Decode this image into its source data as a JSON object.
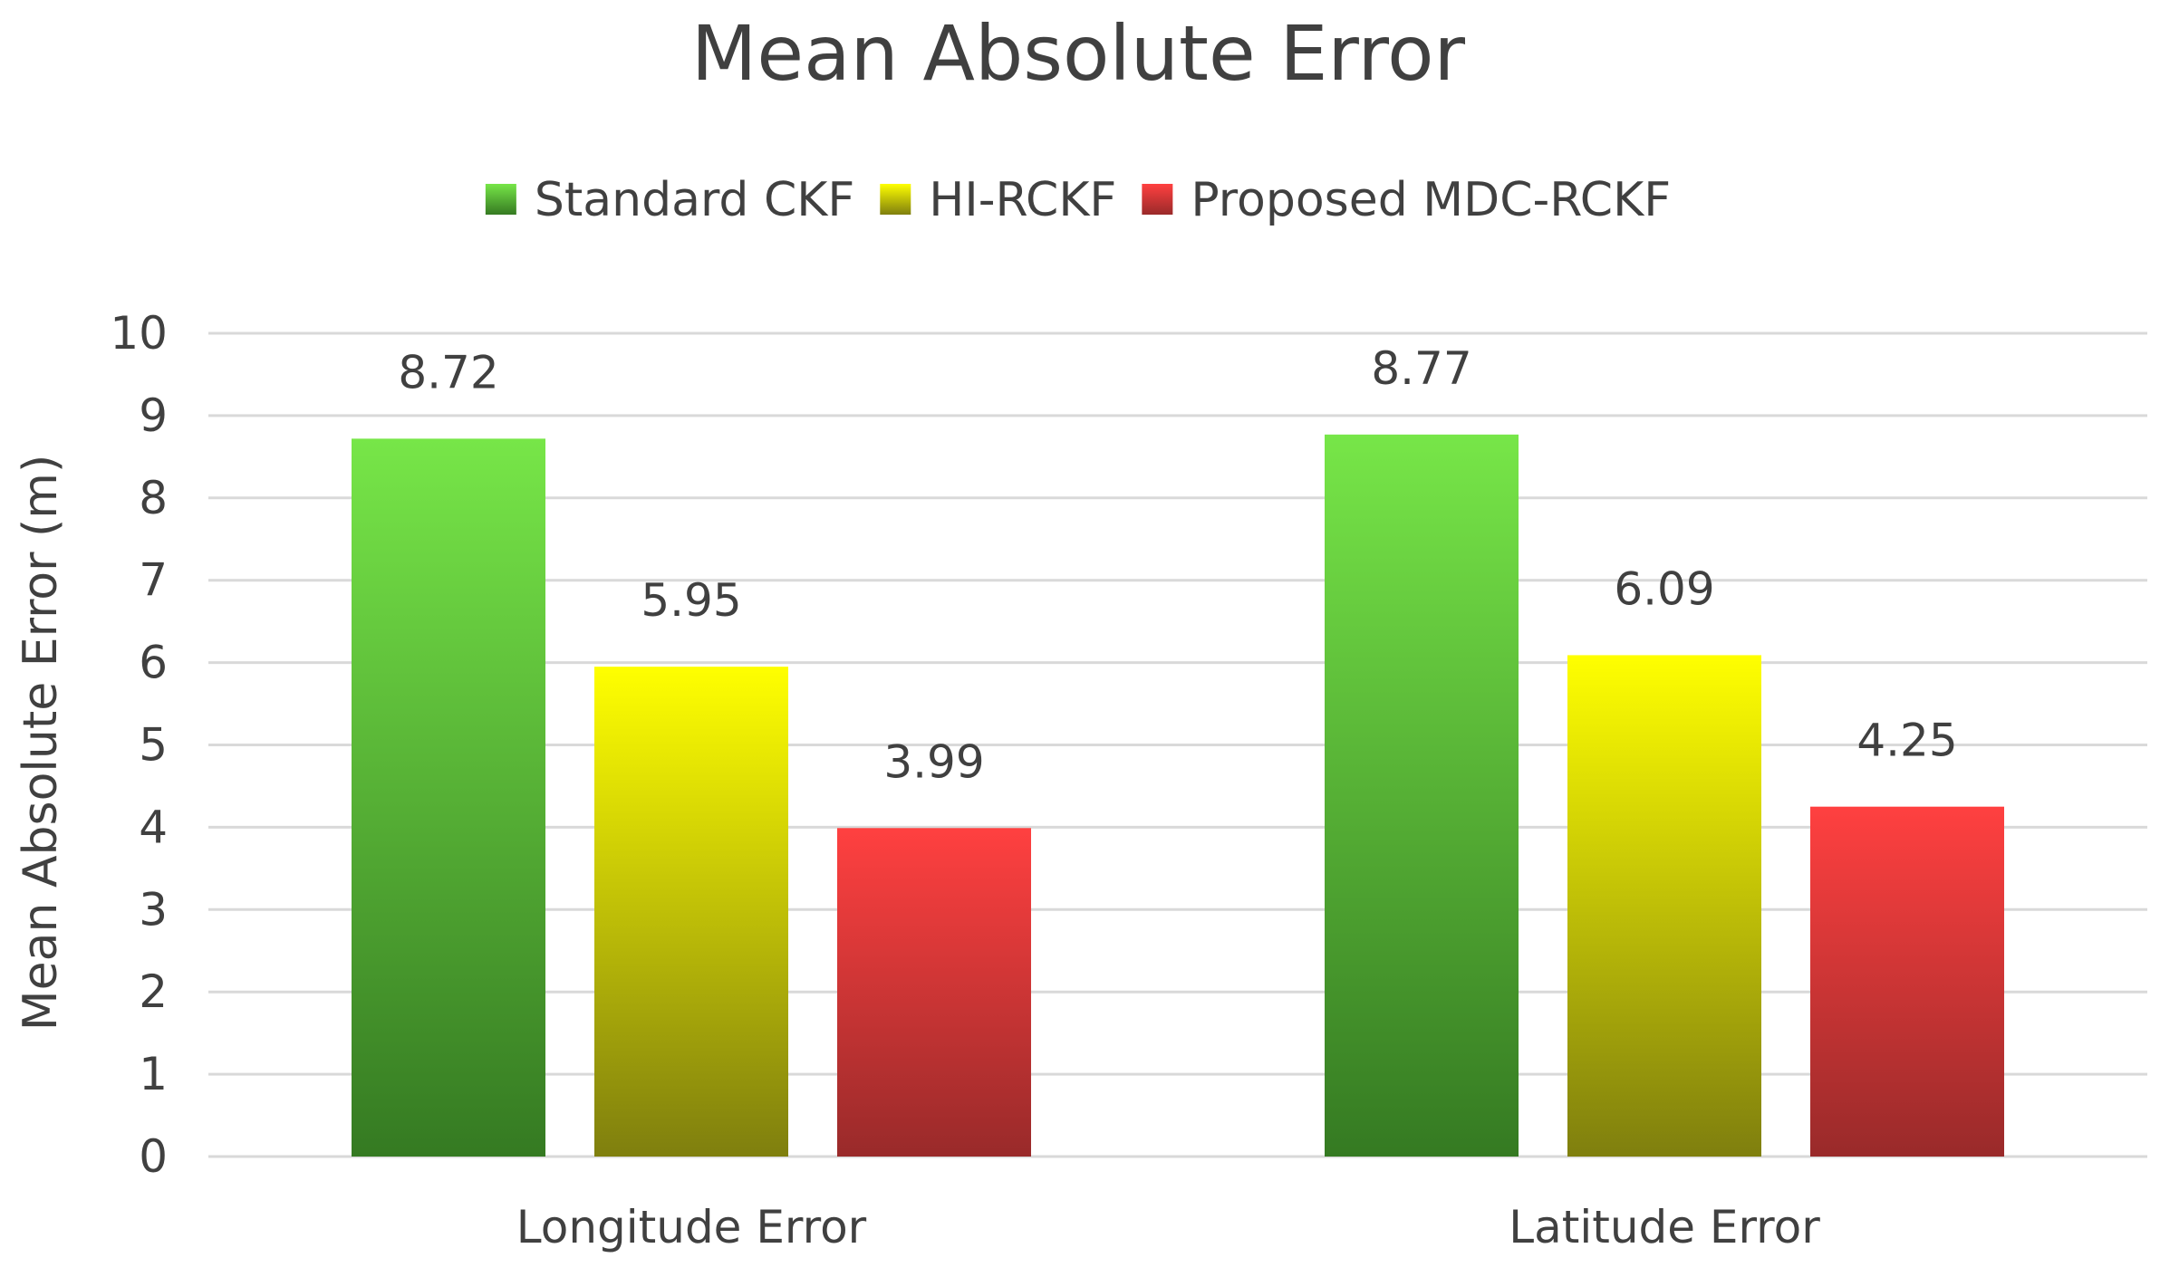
{
  "chart_data": {
    "type": "bar",
    "title": "Mean Absolute Error",
    "ylabel": "Mean Absolute Error (m)",
    "xlabel": "",
    "categories": [
      "Longitude Error",
      "Latitude Error"
    ],
    "ylim": [
      0,
      10
    ],
    "yticks": [
      0,
      1,
      2,
      3,
      4,
      5,
      6,
      7,
      8,
      9,
      10
    ],
    "grid": true,
    "legend_position": "top",
    "series": [
      {
        "name": "Standard CKF",
        "values": [
          8.72,
          8.77
        ],
        "labels": [
          "8.72",
          "8.77"
        ],
        "color_top": "#77e648",
        "color_bottom": "#357a22"
      },
      {
        "name": "HI-RCKF",
        "values": [
          5.95,
          6.09
        ],
        "labels": [
          "5.95",
          "6.09"
        ],
        "color_top": "#ffff00",
        "color_bottom": "#7f7f0e"
      },
      {
        "name": "Proposed MDC-RCKF",
        "values": [
          3.99,
          4.25
        ],
        "labels": [
          "3.99",
          "4.25"
        ],
        "color_top": "#ff4040",
        "color_bottom": "#992a2a"
      }
    ]
  }
}
